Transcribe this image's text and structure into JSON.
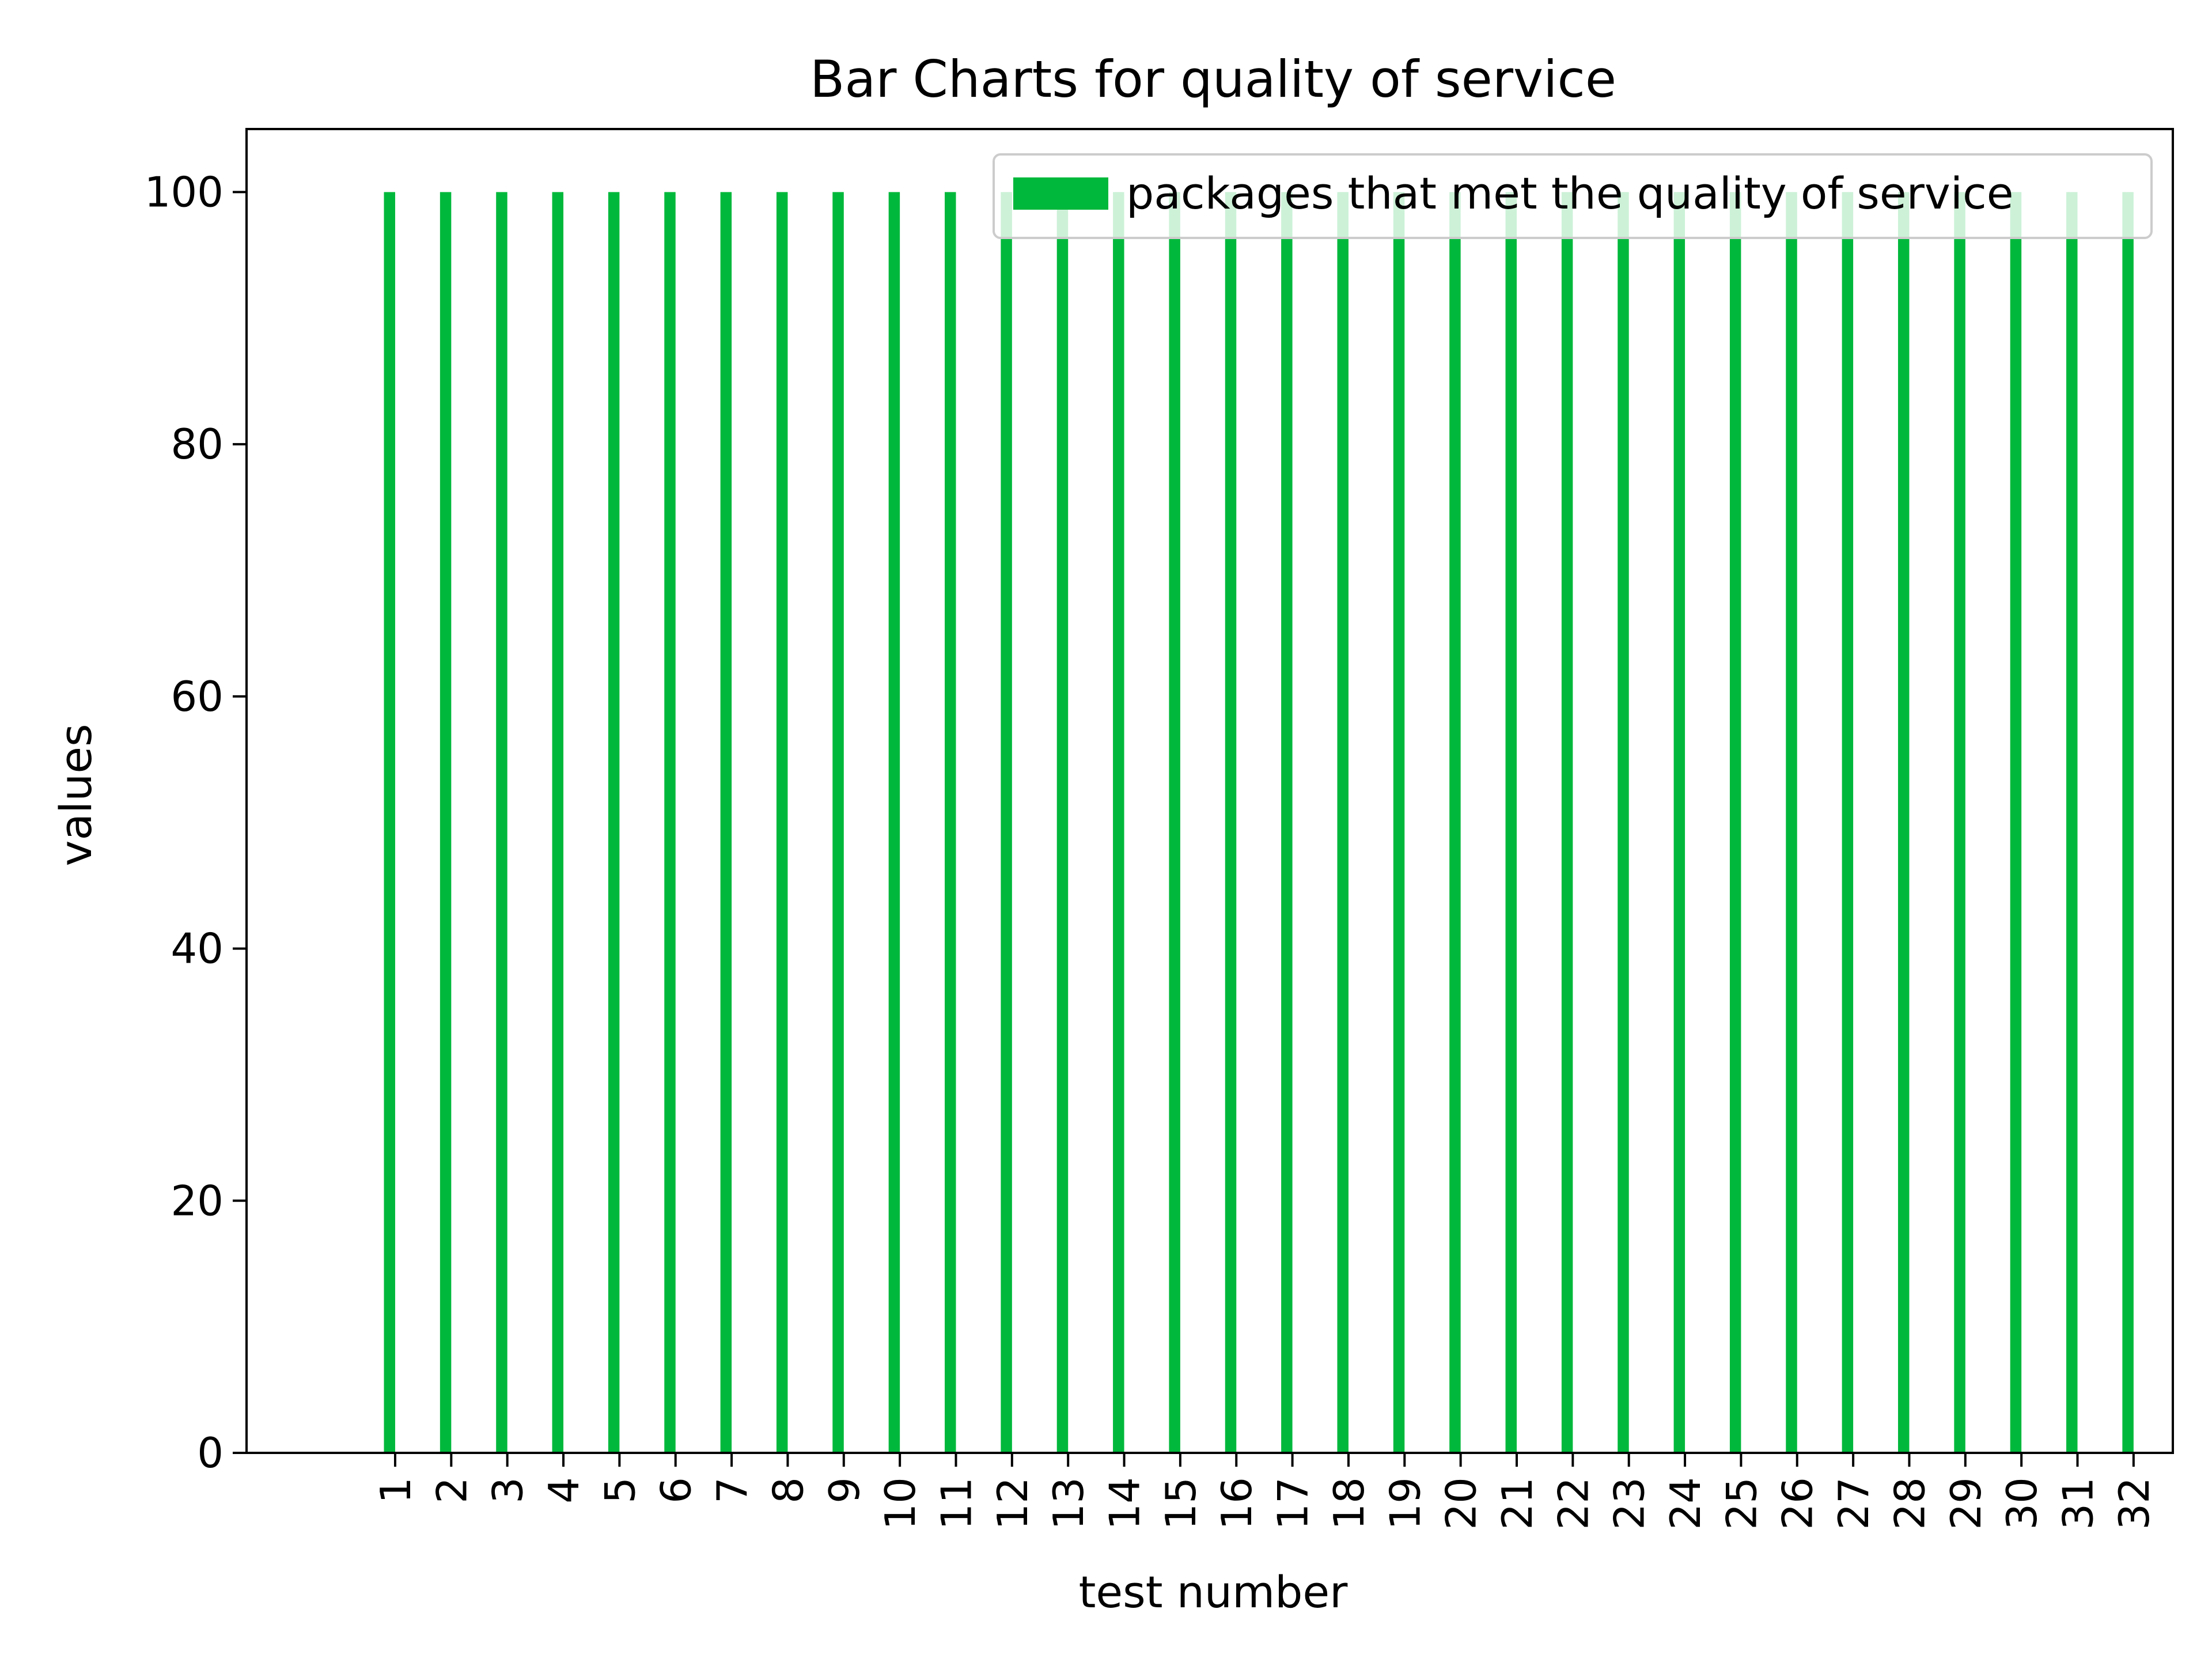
{
  "chart_data": {
    "type": "bar",
    "title": "Bar Charts for quality of service",
    "xlabel": "test number",
    "ylabel": "values",
    "categories": [
      "1",
      "2",
      "3",
      "4",
      "5",
      "6",
      "7",
      "8",
      "9",
      "10",
      "11",
      "12",
      "13",
      "14",
      "15",
      "16",
      "17",
      "18",
      "19",
      "20",
      "21",
      "22",
      "23",
      "24",
      "25",
      "26",
      "27",
      "28",
      "29",
      "30",
      "31",
      "32"
    ],
    "series": [
      {
        "name": "packages that met the quality of service",
        "color": "#00b83b",
        "values": [
          100,
          100,
          100,
          100,
          100,
          100,
          100,
          100,
          100,
          100,
          100,
          100,
          100,
          100,
          100,
          100,
          100,
          100,
          100,
          100,
          100,
          100,
          100,
          100,
          100,
          100,
          100,
          100,
          100,
          100,
          100,
          100
        ]
      }
    ],
    "ylim": [
      0,
      105
    ],
    "yticks": [
      0,
      20,
      40,
      60,
      80,
      100
    ],
    "xtick_rotation": "vertical",
    "grid": false,
    "legend": "top-right"
  }
}
